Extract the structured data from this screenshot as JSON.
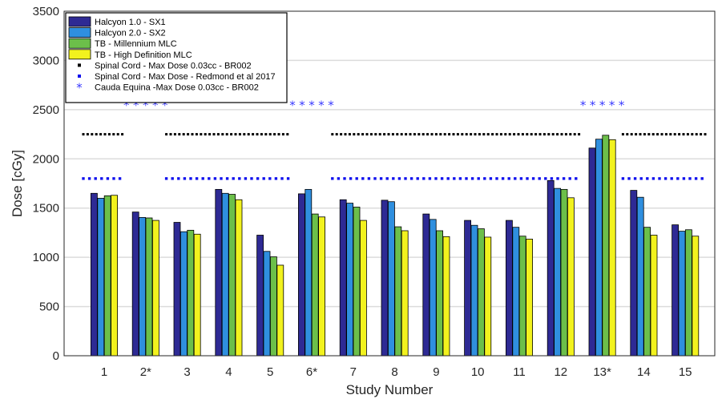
{
  "chart_data": {
    "type": "bar",
    "xlabel": "Study Number",
    "ylabel": "Dose [cGy]",
    "ylim": [
      0,
      3500
    ],
    "yticks": [
      0,
      500,
      1000,
      1500,
      2000,
      2500,
      3000,
      3500
    ],
    "grid": "horizontal",
    "legend_position": "top-left",
    "categories": [
      "1",
      "2*",
      "3",
      "4",
      "5",
      "6*",
      "7",
      "8",
      "9",
      "10",
      "11",
      "12",
      "13*",
      "14",
      "15"
    ],
    "series": [
      {
        "name": "Halcyon 1.0 - SX1",
        "color": "#2e2a94",
        "values": [
          1650,
          1460,
          1355,
          1690,
          1225,
          1645,
          1585,
          1580,
          1440,
          1375,
          1375,
          1780,
          2110,
          1680,
          1330
        ]
      },
      {
        "name": "Halcyon 2.0 - SX2",
        "color": "#2f8fdf",
        "values": [
          1600,
          1405,
          1260,
          1650,
          1060,
          1690,
          1550,
          1565,
          1385,
          1325,
          1305,
          1700,
          2200,
          1610,
          1265
        ]
      },
      {
        "name": "TB - Millennium MLC",
        "color": "#6cbf4a",
        "values": [
          1625,
          1400,
          1275,
          1640,
          1005,
          1440,
          1510,
          1310,
          1270,
          1290,
          1215,
          1690,
          2240,
          1305,
          1280
        ]
      },
      {
        "name": "TB - High Definition MLC",
        "color": "#f2f21e",
        "values": [
          1630,
          1375,
          1235,
          1585,
          920,
          1410,
          1375,
          1270,
          1210,
          1205,
          1185,
          1605,
          2195,
          1225,
          1215
        ]
      }
    ],
    "reference_lines": [
      {
        "name": "Spinal Cord - Max Dose 0.03cc - BR002",
        "color": "#000000",
        "marker": "square",
        "value": 2250,
        "segments": [
          [
            "1",
            "1"
          ],
          [
            "3",
            "5"
          ],
          [
            "7",
            "12"
          ],
          [
            "14",
            "15"
          ]
        ]
      },
      {
        "name": "Spinal Cord - Max Dose - Redmond et al 2017",
        "color": "#1010ee",
        "marker": "square",
        "value": 1800,
        "segments": [
          [
            "1",
            "1"
          ],
          [
            "3",
            "5"
          ],
          [
            "7",
            "12"
          ],
          [
            "14",
            "15"
          ]
        ]
      },
      {
        "name": "Cauda Equina -Max Dose 0.03cc - BR002",
        "color": "#3b3bff",
        "marker": "asterisk",
        "value": 2550,
        "segments": [
          [
            "2*",
            "2*"
          ],
          [
            "6*",
            "6*"
          ],
          [
            "13*",
            "13*"
          ]
        ]
      }
    ]
  }
}
